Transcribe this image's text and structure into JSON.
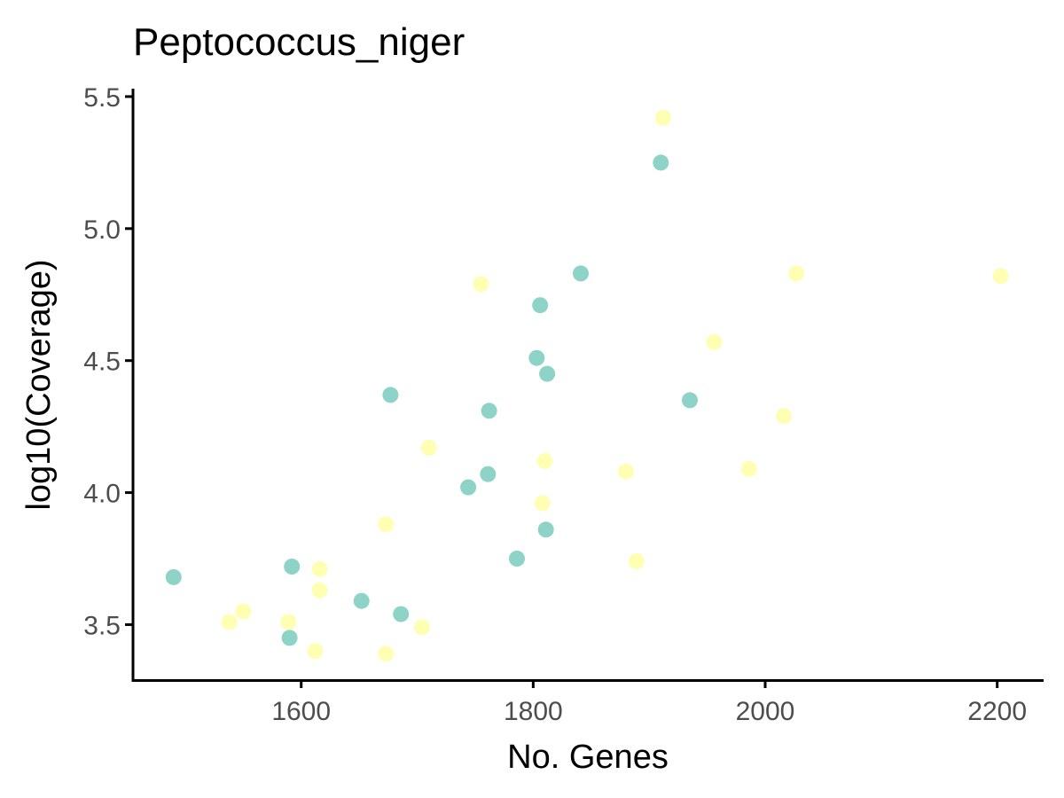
{
  "chart_data": {
    "type": "scatter",
    "title": "Peptococcus_niger",
    "xlabel": "No. Genes",
    "ylabel": "log10(Coverage)",
    "xlim": [
      1455,
      2240
    ],
    "ylim": [
      3.29,
      5.53
    ],
    "xticks": [
      1600,
      1800,
      2000,
      2200
    ],
    "xtick_labels": [
      "1600",
      "1800",
      "2000",
      "2200"
    ],
    "yticks": [
      3.5,
      4.0,
      4.5,
      5.0,
      5.5
    ],
    "ytick_labels": [
      "3.5",
      "4.0",
      "4.5",
      "5.0",
      "5.5"
    ],
    "grid": false,
    "legend": "none",
    "series": [
      {
        "color": "#8dd3c7",
        "points": [
          [
            1910,
            5.25
          ],
          [
            1841,
            4.83
          ],
          [
            1806,
            4.71
          ],
          [
            1803,
            4.51
          ],
          [
            1812,
            4.45
          ],
          [
            1677,
            4.37
          ],
          [
            1762,
            4.31
          ],
          [
            1935,
            4.35
          ],
          [
            1761,
            4.07
          ],
          [
            1744,
            4.02
          ],
          [
            1811,
            3.86
          ],
          [
            1786,
            3.75
          ],
          [
            1490,
            3.68
          ],
          [
            1592,
            3.72
          ],
          [
            1652,
            3.59
          ],
          [
            1686,
            3.54
          ],
          [
            1590,
            3.45
          ]
        ]
      },
      {
        "color": "#ffffb3",
        "points": [
          [
            1912,
            5.42
          ],
          [
            2027,
            4.83
          ],
          [
            2203,
            4.82
          ],
          [
            1755,
            4.79
          ],
          [
            1956,
            4.57
          ],
          [
            2016,
            4.29
          ],
          [
            1710,
            4.17
          ],
          [
            1810,
            4.12
          ],
          [
            1880,
            4.08
          ],
          [
            1986,
            4.09
          ],
          [
            1808,
            3.96
          ],
          [
            1673,
            3.88
          ],
          [
            1889,
            3.74
          ],
          [
            1616,
            3.71
          ],
          [
            1616,
            3.63
          ],
          [
            1550,
            3.55
          ],
          [
            1538,
            3.51
          ],
          [
            1589,
            3.51
          ],
          [
            1704,
            3.49
          ],
          [
            1612,
            3.4
          ],
          [
            1673,
            3.39
          ]
        ]
      }
    ]
  }
}
